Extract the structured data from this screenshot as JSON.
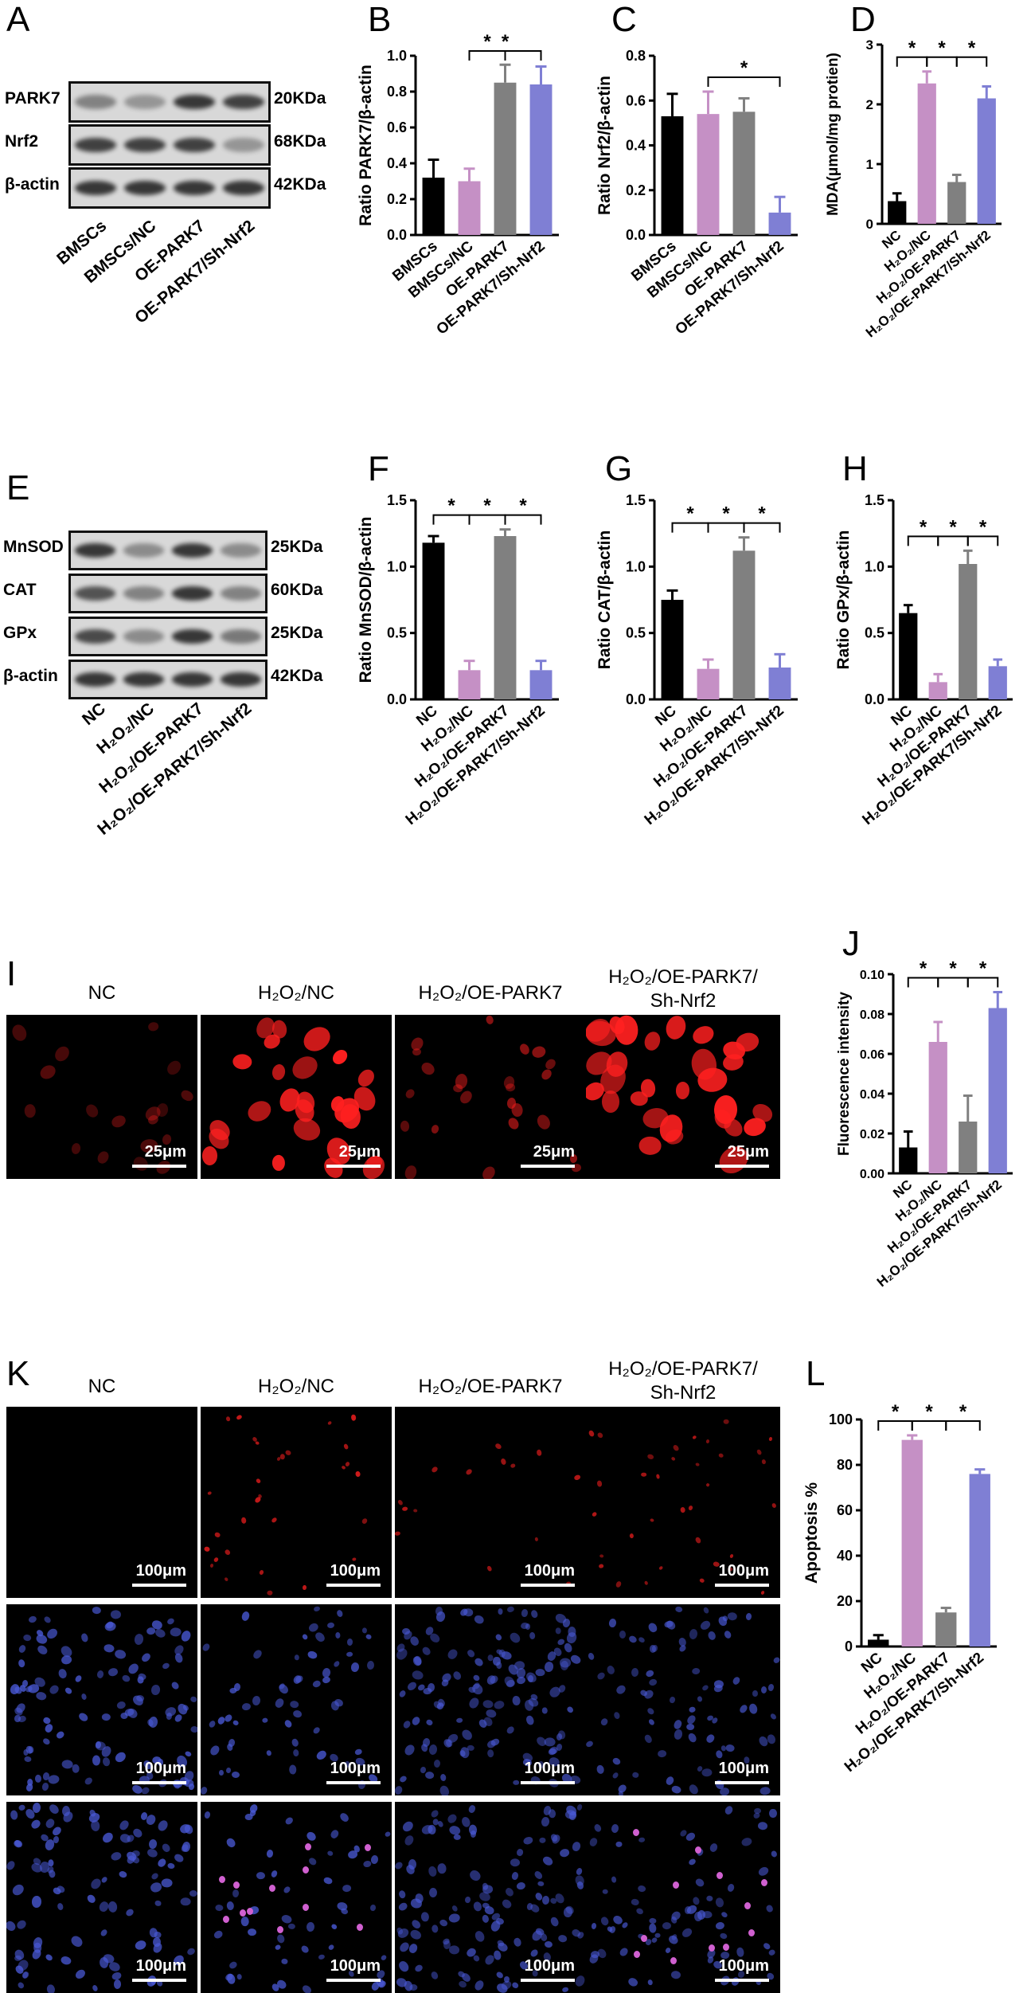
{
  "panels": {
    "A": "A",
    "B": "B",
    "C": "C",
    "D": "D",
    "E": "E",
    "F": "F",
    "G": "G",
    "H": "H",
    "I": "I",
    "J": "J",
    "K": "K",
    "L": "L"
  },
  "blotA": {
    "rows": [
      {
        "label": "PARK7",
        "kda": "20KDa",
        "intensity": [
          0.45,
          0.35,
          0.85,
          0.8
        ]
      },
      {
        "label": "Nrf2",
        "kda": "68KDa",
        "intensity": [
          0.8,
          0.8,
          0.8,
          0.35
        ]
      },
      {
        "label": "β-actin",
        "kda": "42KDa",
        "intensity": [
          0.85,
          0.85,
          0.85,
          0.85
        ]
      }
    ],
    "lanes": [
      "BMSCs",
      "BMSCs/NC",
      "OE-PARK7",
      "OE-PARK7/Sh-Nrf2"
    ]
  },
  "blotE": {
    "rows": [
      {
        "label": "MnSOD",
        "kda": "25KDa",
        "intensity": [
          0.85,
          0.4,
          0.85,
          0.4
        ]
      },
      {
        "label": "CAT",
        "kda": "60KDa",
        "intensity": [
          0.7,
          0.45,
          0.85,
          0.45
        ]
      },
      {
        "label": "GPx",
        "kda": "25KDa",
        "intensity": [
          0.75,
          0.4,
          0.85,
          0.5
        ]
      },
      {
        "label": "β-actin",
        "kda": "42KDa",
        "intensity": [
          0.85,
          0.85,
          0.85,
          0.85
        ]
      }
    ],
    "lanes": [
      "NC",
      "H₂O₂/NC",
      "H₂O₂/OE-PARK7",
      "H₂O₂/OE-PARK7/Sh-Nrf2"
    ]
  },
  "colors": {
    "black": "#000000",
    "pink": "#c590c5",
    "gray": "#808080",
    "blue": "#7f7fd4",
    "red_stain": "#ff2020",
    "blue_stain": "#4a5ad8",
    "pink_stain": "#d060d0"
  },
  "chart_data": [
    {
      "id": "B",
      "type": "bar",
      "categories": [
        "BMSCs",
        "BMSCs/NC",
        "OE-PARK7",
        "OE-PARK7/Sh-Nrf2"
      ],
      "values": [
        0.32,
        0.3,
        0.85,
        0.84
      ],
      "errors": [
        0.1,
        0.07,
        0.1,
        0.1
      ],
      "ylabel": "Ratio PARK7/β-actin",
      "ylim": [
        0,
        1.0
      ],
      "ticks": [
        "0.0",
        "0.2",
        "0.4",
        "0.6",
        "0.8",
        "1.0"
      ],
      "brackets": [
        {
          "from": 1,
          "to": 2,
          "level": 1,
          "label": "*"
        },
        {
          "from": 1,
          "to": 3,
          "level": 2,
          "label": "*"
        }
      ]
    },
    {
      "id": "C",
      "type": "bar",
      "categories": [
        "BMSCs",
        "BMSCs/NC",
        "OE-PARK7",
        "OE-PARK7/Sh-Nrf2"
      ],
      "values": [
        0.53,
        0.54,
        0.55,
        0.1
      ],
      "errors": [
        0.1,
        0.1,
        0.06,
        0.07
      ],
      "ylabel": "Ratio Nrf2/β-actin",
      "ylim": [
        0,
        0.8
      ],
      "ticks": [
        "0.0",
        "0.2",
        "0.4",
        "0.6",
        "0.8"
      ],
      "brackets": [
        {
          "from": 1,
          "to": 3,
          "level": 1,
          "label": "*"
        }
      ]
    },
    {
      "id": "D",
      "type": "bar",
      "categories": [
        "NC",
        "H₂O₂/NC",
        "H₂O₂/OE-PARK7",
        "H₂O₂/OE-PARK7/Sh-Nrf2"
      ],
      "values": [
        0.38,
        2.35,
        0.7,
        2.1
      ],
      "errors": [
        0.13,
        0.2,
        0.12,
        0.2
      ],
      "ylabel": "MDA(μmol/mg protien)",
      "ylim": [
        0,
        3
      ],
      "ticks": [
        "0",
        "1",
        "2",
        "3"
      ],
      "brackets": [
        {
          "from": 0,
          "to": 1,
          "level": 1,
          "label": "*"
        },
        {
          "from": 1,
          "to": 2,
          "level": 1,
          "label": "*"
        },
        {
          "from": 2,
          "to": 3,
          "level": 1,
          "label": "*"
        }
      ]
    },
    {
      "id": "F",
      "type": "bar",
      "categories": [
        "NC",
        "H₂O₂/NC",
        "H₂O₂/OE-PARK7",
        "H₂O₂/OE-PARK7/Sh-Nrf2"
      ],
      "values": [
        1.18,
        0.22,
        1.23,
        0.22
      ],
      "errors": [
        0.05,
        0.07,
        0.05,
        0.07
      ],
      "ylabel": "Ratio MnSOD/β-actin",
      "ylim": [
        0,
        1.5
      ],
      "ticks": [
        "0.0",
        "0.5",
        "1.0",
        "1.5"
      ],
      "brackets": [
        {
          "from": 0,
          "to": 1,
          "level": 1,
          "label": "*"
        },
        {
          "from": 1,
          "to": 2,
          "level": 1,
          "label": "*"
        },
        {
          "from": 2,
          "to": 3,
          "level": 1,
          "label": "*"
        }
      ]
    },
    {
      "id": "G",
      "type": "bar",
      "categories": [
        "NC",
        "H₂O₂/NC",
        "H₂O₂/OE-PARK7",
        "H₂O₂/OE-PARK7/Sh-Nrf2"
      ],
      "values": [
        0.75,
        0.23,
        1.12,
        0.24
      ],
      "errors": [
        0.07,
        0.07,
        0.1,
        0.1
      ],
      "ylabel": "Ratio CAT/β-actin",
      "ylim": [
        0,
        1.5
      ],
      "ticks": [
        "0.0",
        "0.5",
        "1.0",
        "1.5"
      ],
      "brackets": [
        {
          "from": 0,
          "to": 1,
          "level": 1,
          "label": "*"
        },
        {
          "from": 1,
          "to": 2,
          "level": 1,
          "label": "*"
        },
        {
          "from": 2,
          "to": 3,
          "level": 1,
          "label": "*"
        }
      ]
    },
    {
      "id": "H",
      "type": "bar",
      "categories": [
        "NC",
        "H₂O₂/NC",
        "H₂O₂/OE-PARK7",
        "H₂O₂/OE-PARK7/Sh-Nrf2"
      ],
      "values": [
        0.65,
        0.13,
        1.02,
        0.25
      ],
      "errors": [
        0.06,
        0.06,
        0.1,
        0.05
      ],
      "ylabel": "Ratio GPx/β-actin",
      "ylim": [
        0,
        1.5
      ],
      "ticks": [
        "0.0",
        "0.5",
        "1.0",
        "1.5"
      ],
      "brackets": [
        {
          "from": 0,
          "to": 1,
          "level": 1,
          "label": "*"
        },
        {
          "from": 1,
          "to": 2,
          "level": 1,
          "label": "*"
        },
        {
          "from": 2,
          "to": 3,
          "level": 1,
          "label": "*"
        }
      ]
    },
    {
      "id": "J",
      "type": "bar",
      "categories": [
        "NC",
        "H₂O₂/NC",
        "H₂O₂/OE-PARK7",
        "H₂O₂/OE-PARK7/Sh-Nrf2"
      ],
      "values": [
        0.013,
        0.066,
        0.026,
        0.083
      ],
      "errors": [
        0.008,
        0.01,
        0.013,
        0.008
      ],
      "ylabel": "Fluorescence intensity",
      "ylim": [
        0,
        0.1
      ],
      "ticks": [
        "0.00",
        "0.02",
        "0.04",
        "0.06",
        "0.08",
        "0.10"
      ],
      "brackets": [
        {
          "from": 0,
          "to": 1,
          "level": 1,
          "label": "*"
        },
        {
          "from": 1,
          "to": 2,
          "level": 1,
          "label": "*"
        },
        {
          "from": 2,
          "to": 3,
          "level": 1,
          "label": "*"
        }
      ]
    },
    {
      "id": "L",
      "type": "bar",
      "categories": [
        "NC",
        "H₂O₂/NC",
        "H₂O₂/OE-PARK7",
        "H₂O₂/OE-PARK7/Sh-Nrf2"
      ],
      "values": [
        3,
        91,
        15,
        76
      ],
      "errors": [
        2,
        2,
        2,
        2
      ],
      "ylabel": "Apoptosis %",
      "ylim": [
        0,
        100
      ],
      "ticks": [
        "0",
        "20",
        "40",
        "60",
        "80",
        "100"
      ],
      "brackets": [
        {
          "from": 0,
          "to": 1,
          "level": 1,
          "label": "*"
        },
        {
          "from": 1,
          "to": 2,
          "level": 1,
          "label": "*"
        },
        {
          "from": 2,
          "to": 3,
          "level": 1,
          "label": "*"
        }
      ]
    }
  ],
  "micrographs": {
    "headers": [
      "NC",
      "H₂O₂/NC",
      "H₂O₂/OE-PARK7",
      "H₂O₂/OE-PARK7/\nSh-Nrf2"
    ],
    "scale_I": "25μm",
    "scale_K": "100μm"
  }
}
